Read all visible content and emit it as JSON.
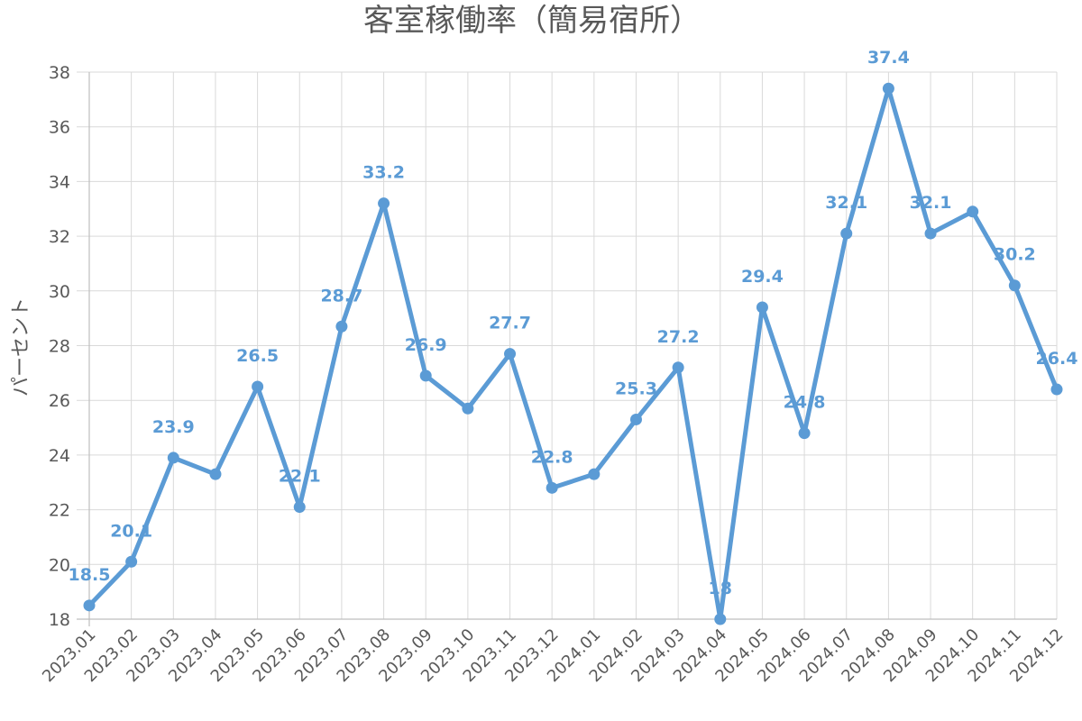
{
  "chart_data": {
    "type": "line",
    "title": "客室稼働率（簡易宿所）",
    "ylabel": "パーセント",
    "xlabel": "",
    "ylim": [
      18,
      38
    ],
    "yticks": [
      18,
      20,
      22,
      24,
      26,
      28,
      30,
      32,
      34,
      36,
      38
    ],
    "grid": true,
    "legend": "none",
    "line_color": "#5b9bd5",
    "categories": [
      "2023.01",
      "2023.02",
      "2023.03",
      "2023.04",
      "2023.05",
      "2023.06",
      "2023.07",
      "2023.08",
      "2023.09",
      "2023.10",
      "2023.11",
      "2023.12",
      "2024.01",
      "2024.02",
      "2024.03",
      "2024.04",
      "2024.05",
      "2024.06",
      "2024.07",
      "2024.08",
      "2024.09",
      "2024.10",
      "2024.11",
      "2024.12"
    ],
    "values": [
      18.5,
      20.1,
      23.9,
      23.3,
      26.5,
      22.1,
      28.7,
      33.2,
      26.9,
      25.7,
      27.7,
      22.8,
      23.3,
      25.3,
      27.2,
      18,
      29.4,
      24.8,
      32.1,
      37.4,
      32.1,
      32.9,
      30.2,
      26.4
    ],
    "data_labels": [
      "18.5",
      "20.1",
      "23.9",
      null,
      "26.5",
      "22.1",
      "28.7",
      "33.2",
      "26.9",
      null,
      "27.7",
      "22.8",
      null,
      "25.3",
      "27.2",
      "18",
      "29.4",
      "24.8",
      "32.1",
      "37.4",
      "32.1",
      null,
      "30.2",
      "26.4"
    ]
  }
}
